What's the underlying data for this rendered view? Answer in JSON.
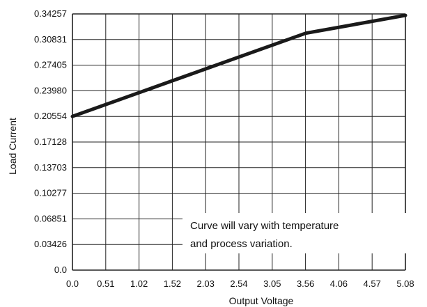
{
  "chart_data": {
    "type": "line",
    "title": "",
    "xlabel": "Output Voltage",
    "ylabel": "Load Current",
    "x_ticks": [
      "0.0",
      "0.51",
      "1.02",
      "1.52",
      "2.03",
      "2.54",
      "3.05",
      "3.56",
      "4.06",
      "4.57",
      "5.08"
    ],
    "y_ticks": [
      "0.0",
      "0.03426",
      "0.06851",
      "0.10277",
      "0.13703",
      "0.17128",
      "0.20554",
      "0.23980",
      "0.27405",
      "0.30831",
      "0.34257"
    ],
    "xlim": [
      0,
      5.08
    ],
    "ylim": [
      0,
      0.34257
    ],
    "grid": true,
    "legend": "none",
    "series": [
      {
        "x": [
          0.0,
          3.56,
          5.08
        ],
        "y": [
          0.2055,
          0.3168,
          0.3406
        ]
      }
    ],
    "annotation": {
      "lines": [
        "Curve will vary with temperature",
        "and process variation."
      ]
    },
    "colors": {
      "line": "#1a1a1a",
      "grid": "#222222",
      "background": "#ffffff"
    }
  }
}
